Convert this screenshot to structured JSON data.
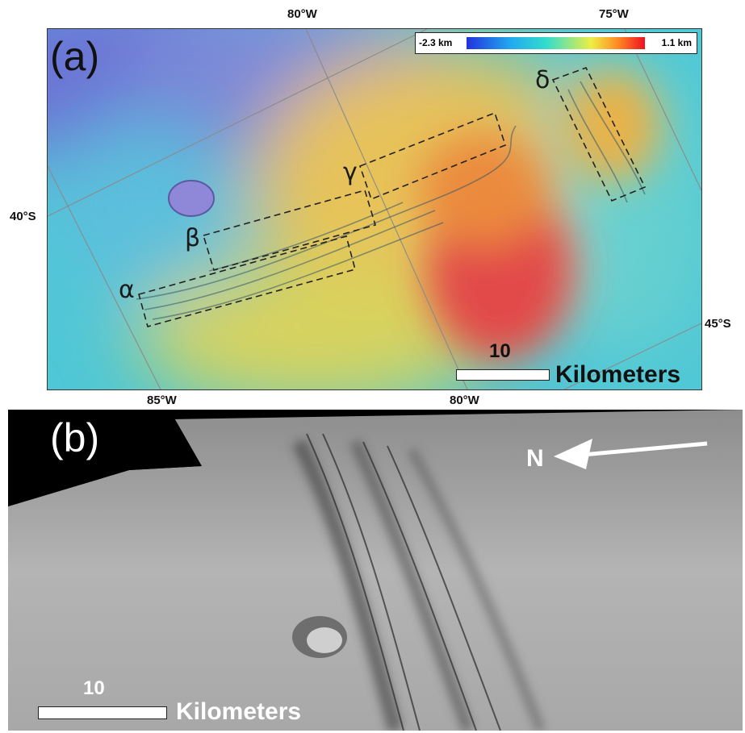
{
  "panel_a": {
    "label": "(a)",
    "longitude_top": [
      "80°W",
      "75°W"
    ],
    "longitude_bottom": [
      "85°W",
      "80°W"
    ],
    "latitude": [
      "40°S",
      "45°S"
    ],
    "colorbar": {
      "min_label": "-2.3 km",
      "max_label": "1.1 km"
    },
    "regions": [
      "α",
      "β",
      "γ",
      "δ"
    ],
    "scale_bar": {
      "value": "10",
      "unit": "Kilometers"
    }
  },
  "panel_b": {
    "label": "(b)",
    "north_arrow": "N",
    "scale_bar": {
      "value": "10",
      "unit": "Kilometers"
    }
  },
  "colors": {
    "elev_low": "#2233dd",
    "elev_mid": "#33ddcc",
    "elev_high": "#ee1122"
  }
}
